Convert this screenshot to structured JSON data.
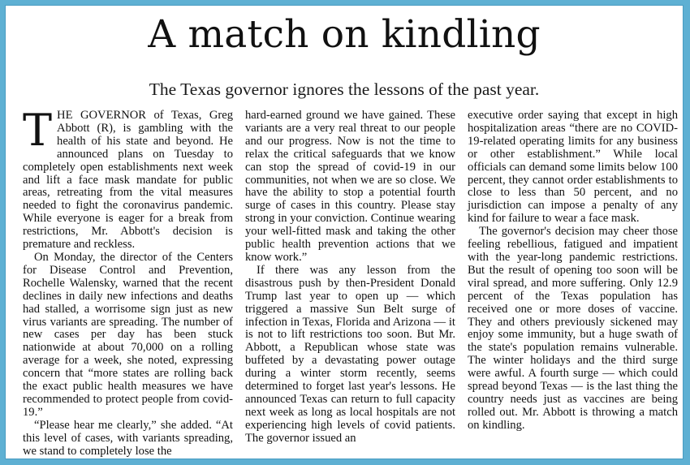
{
  "headline": "A match on kindling",
  "deck": "The Texas governor ignores the lessons of the past year.",
  "article": {
    "dropcap": "T",
    "col1": [
      "HE GOVERNOR of Texas, Greg Abbott (R), is gambling with the health of his state and beyond. He announced plans on Tuesday to completely open establishments next week and lift a face mask mandate for public areas, retreating from the vital measures needed to fight the coronavirus pandemic. While everyone is eager for a break from restrictions, Mr. Abbott's decision is premature and reckless.",
      "On Monday, the director of the Centers for Disease Control and Prevention, Rochelle Walensky, warned that the recent declines in daily new infections and deaths had stalled, a worrisome sign just as new virus variants are spreading. The number of new cases per day has been stuck nationwide at about 70,000 on a rolling average for a week, she noted, expressing concern that “more states are rolling back the exact public health measures we have recommended to protect people from covid-19.”",
      "“Please hear me clearly,” she added. “At this level of cases, with variants spreading, we stand to completely lose the"
    ],
    "col2": [
      "hard-earned ground we have gained. These variants are a very real threat to our people and our progress. Now is not the time to relax the critical safeguards that we know can stop the spread of covid-19 in our communities, not when we are so close. We have the ability to stop a potential fourth surge of cases in this country. Please stay strong in your conviction. Continue wearing your well-fitted mask and taking the other public health prevention actions that we know work.”",
      "If there was any lesson from the disastrous push by then-President Donald Trump last year to open up — which triggered a massive Sun Belt surge of infection in Texas, Florida and Arizona — it is not to lift restrictions too soon. But Mr. Abbott, a Republican whose state was buffeted by a devastating power outage during a winter storm recently, seems determined to forget last year's lessons. He announced Texas can return to full capacity next week as long as local hospitals are not experiencing high levels of covid patients. The governor issued an"
    ],
    "col3": [
      "executive order saying that except in high hospitalization areas “there are no COVID-19-related operating limits for any business or other establishment.” While local officials can demand some limits below 100 percent, they cannot order establishments to close to less than 50 percent, and no jurisdiction can impose a penalty of any kind for failure to wear a face mask.",
      "The governor's decision may cheer those feeling rebellious, fatigued and impatient with the year-long pandemic restrictions. But the result of opening too soon will be viral spread, and more suffering. Only 12.9 percent of the Texas population has received one or more doses of vaccine. They and others previously sickened may enjoy some immunity, but a huge swath of the state's population remains vulnerable. The winter holidays and the third surge were awful. A fourth surge — which could spread beyond Texas — is the last thing the country needs just as vaccines are being rolled out. Mr. Abbott is throwing a match on kindling."
    ]
  }
}
